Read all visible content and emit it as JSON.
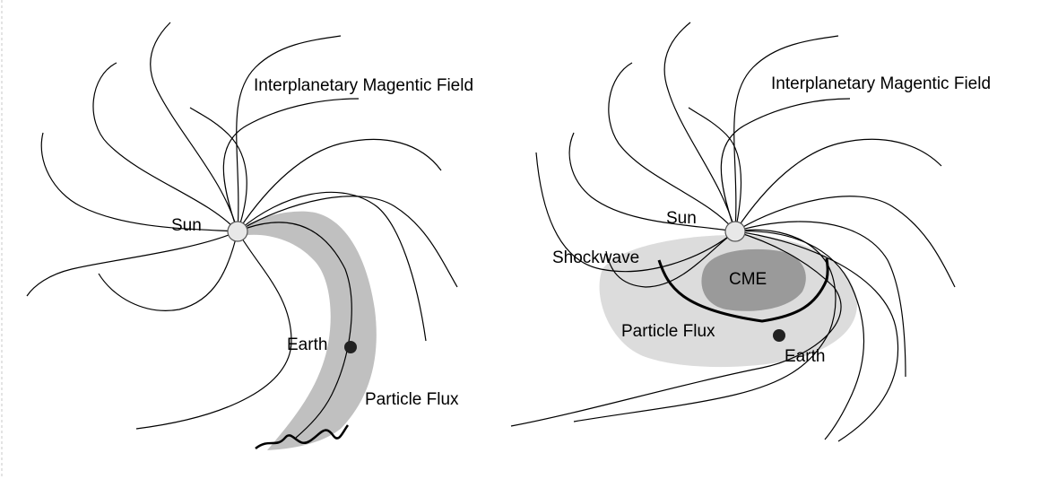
{
  "left_panel": {
    "field_label": "Interplanetary Magentic Field",
    "sun_label": "Sun",
    "earth_label": "Earth",
    "flux_label": "Particle Flux"
  },
  "right_panel": {
    "field_label": "Interplanetary Magentic Field",
    "sun_label": "Sun",
    "shock_label": "Shockwave",
    "cme_label": "CME",
    "flux_label": "Particle Flux",
    "earth_label": "Earth"
  },
  "colors": {
    "flux_outer": "#c0c0c0",
    "flux_right": "#dcdcdc",
    "cme": "#9a9a9a",
    "sun_fill": "#e8e8e8",
    "earth": "#222222"
  }
}
